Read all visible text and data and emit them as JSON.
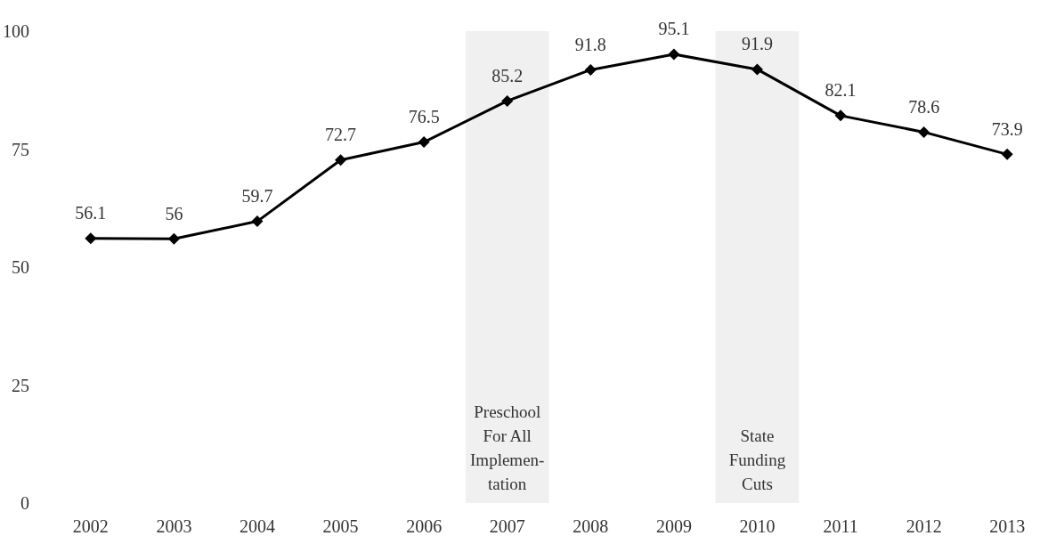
{
  "chart_data": {
    "type": "line",
    "categories": [
      "2002",
      "2003",
      "2004",
      "2005",
      "2006",
      "2007",
      "2008",
      "2009",
      "2010",
      "2011",
      "2012",
      "2013"
    ],
    "series": [
      {
        "color": "#000000",
        "values": [
          56.1,
          56,
          59.7,
          72.7,
          76.5,
          85.2,
          91.8,
          95.1,
          91.9,
          82.1,
          78.6,
          73.9
        ]
      }
    ],
    "ylim": [
      0,
      100
    ],
    "yticks": [
      0,
      25,
      50,
      75,
      100
    ],
    "marker": "diamond",
    "line_style": "solid",
    "data_labels": true,
    "bands": [
      {
        "axis": "x",
        "from": "2007",
        "to": "2007",
        "label": "Preschool\nFor All\nImplemen-\ntation",
        "color": "#f0f0f0"
      },
      {
        "axis": "x",
        "from": "2010",
        "to": "2010",
        "label": "State\nFunding\nCuts",
        "color": "#f0f0f0"
      }
    ]
  }
}
